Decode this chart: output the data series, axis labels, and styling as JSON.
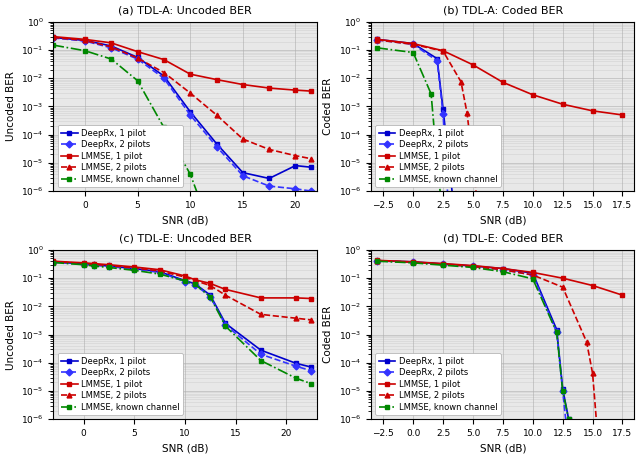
{
  "fig_width": 6.4,
  "fig_height": 4.59,
  "dpi": 100,
  "background_color": "#ffffff",
  "tdla_uncoded": {
    "xlabel": "SNR (dB)",
    "ylabel": "Uncoded BER",
    "title": "(a) TDL-A: Uncoded BER",
    "xlim": [
      -3,
      22
    ],
    "ylim_log": [
      -6,
      0
    ],
    "xticks": [
      0,
      5,
      10,
      15,
      20
    ],
    "series": [
      {
        "label": "DeepRx, 1 pilot",
        "color": "#0000cc",
        "linestyle": "-",
        "marker": "s",
        "markersize": 3.5,
        "linewidth": 1.2,
        "x": [
          -3,
          0,
          2.5,
          5,
          7.5,
          10,
          12.5,
          15,
          17.5,
          20,
          21.5
        ],
        "y": [
          0.28,
          0.22,
          0.14,
          0.055,
          0.012,
          0.00065,
          4.8e-05,
          4.5e-06,
          2.8e-06,
          8e-06,
          7e-06
        ]
      },
      {
        "label": "DeepRx, 2 pilots",
        "color": "#3333ff",
        "linestyle": "--",
        "marker": "D",
        "markersize": 3.5,
        "linewidth": 1.2,
        "x": [
          -3,
          0,
          2.5,
          5,
          7.5,
          10,
          12.5,
          15,
          17.5,
          20,
          21.5
        ],
        "y": [
          0.27,
          0.21,
          0.12,
          0.048,
          0.01,
          0.0005,
          3.8e-05,
          3.5e-06,
          1.5e-06,
          1.2e-06,
          1e-06
        ]
      },
      {
        "label": "LMMSE, 1 pilot",
        "color": "#cc0000",
        "linestyle": "-",
        "marker": "s",
        "markersize": 3.5,
        "linewidth": 1.2,
        "x": [
          -3,
          0,
          2.5,
          5,
          7.5,
          10,
          12.5,
          15,
          17.5,
          20,
          21.5
        ],
        "y": [
          0.3,
          0.24,
          0.18,
          0.088,
          0.046,
          0.014,
          0.009,
          0.006,
          0.0045,
          0.0038,
          0.0035
        ]
      },
      {
        "label": "LMMSE, 2 pilots",
        "color": "#cc0000",
        "linestyle": "--",
        "marker": "^",
        "markersize": 3.5,
        "linewidth": 1.2,
        "x": [
          -3,
          0,
          2.5,
          5,
          7.5,
          10,
          12.5,
          15,
          17.5,
          20,
          21.5
        ],
        "y": [
          0.28,
          0.22,
          0.13,
          0.052,
          0.016,
          0.003,
          0.0005,
          7e-05,
          3e-05,
          1.8e-05,
          1.4e-05
        ]
      },
      {
        "label": "LMMSE, known channel",
        "color": "#008800",
        "linestyle": "-.",
        "marker": "s",
        "markersize": 3.5,
        "linewidth": 1.2,
        "x": [
          -3,
          0,
          2.5,
          5,
          7.5,
          10,
          11,
          12,
          13,
          14
        ],
        "y": [
          0.15,
          0.095,
          0.048,
          0.0082,
          0.00018,
          4e-06,
          4e-07,
          4e-08,
          4e-09,
          4e-10
        ]
      }
    ]
  },
  "tdla_coded": {
    "xlabel": "SNR (dB)",
    "ylabel": "Coded BER",
    "title": "(b) TDL-A: Coded BER",
    "xlim": [
      -3.5,
      18.5
    ],
    "ylim_log": [
      -6,
      0
    ],
    "xticks": [
      -2.5,
      0.0,
      2.5,
      5.0,
      7.5,
      10.0,
      12.5,
      15.0,
      17.5
    ],
    "series": [
      {
        "label": "DeepRx, 1 pilot",
        "color": "#0000cc",
        "linestyle": "-",
        "marker": "s",
        "markersize": 3.5,
        "linewidth": 1.2,
        "x": [
          -3,
          0,
          2.0,
          2.5,
          3.0,
          3.5
        ],
        "y": [
          0.24,
          0.17,
          0.05,
          0.0008,
          1e-05,
          1e-07
        ]
      },
      {
        "label": "DeepRx, 2 pilots",
        "color": "#3333ff",
        "linestyle": "--",
        "marker": "D",
        "markersize": 3.5,
        "linewidth": 1.2,
        "x": [
          -3,
          0,
          2.0,
          2.5,
          3.0
        ],
        "y": [
          0.23,
          0.16,
          0.042,
          0.00055,
          1e-07
        ]
      },
      {
        "label": "LMMSE, 1 pilot",
        "color": "#cc0000",
        "linestyle": "-",
        "marker": "s",
        "markersize": 3.5,
        "linewidth": 1.2,
        "x": [
          -3,
          0,
          2.5,
          5.0,
          7.5,
          10.0,
          12.5,
          15.0,
          17.5
        ],
        "y": [
          0.24,
          0.17,
          0.095,
          0.03,
          0.0072,
          0.0026,
          0.0012,
          0.0007,
          0.0005
        ]
      },
      {
        "label": "LMMSE, 2 pilots",
        "color": "#cc0000",
        "linestyle": "--",
        "marker": "^",
        "markersize": 3.5,
        "linewidth": 1.2,
        "x": [
          -3,
          0,
          2.5,
          4.0,
          4.5,
          5.0,
          5.5
        ],
        "y": [
          0.23,
          0.16,
          0.092,
          0.0075,
          0.0006,
          1e-05,
          1e-07
        ]
      },
      {
        "label": "LMMSE, known channel",
        "color": "#008800",
        "linestyle": "-.",
        "marker": "s",
        "markersize": 3.5,
        "linewidth": 1.2,
        "x": [
          -3,
          0,
          1.5,
          2.0,
          2.5
        ],
        "y": [
          0.12,
          0.082,
          0.0028,
          1e-05,
          1e-07
        ]
      }
    ]
  },
  "tdle_uncoded": {
    "xlabel": "SNR (dB)",
    "ylabel": "Uncoded BER",
    "title": "(c) TDL-E: Uncoded BER",
    "xlim": [
      -3,
      23
    ],
    "ylim_log": [
      -6,
      0
    ],
    "xticks": [
      0,
      5,
      10,
      15,
      20
    ],
    "series": [
      {
        "label": "DeepRx, 1 pilot",
        "color": "#0000cc",
        "linestyle": "-",
        "marker": "s",
        "markersize": 3.5,
        "linewidth": 1.2,
        "x": [
          -3,
          0,
          1,
          2.5,
          5,
          7.5,
          10,
          11,
          12.5,
          14,
          17.5,
          21,
          22.5
        ],
        "y": [
          0.38,
          0.32,
          0.3,
          0.27,
          0.22,
          0.17,
          0.082,
          0.063,
          0.025,
          0.0025,
          0.00028,
          9.5e-05,
          7e-05
        ]
      },
      {
        "label": "DeepRx, 2 pilots",
        "color": "#3333ff",
        "linestyle": "--",
        "marker": "D",
        "markersize": 3.5,
        "linewidth": 1.2,
        "x": [
          -3,
          0,
          1,
          2.5,
          5,
          7.5,
          10,
          11,
          12.5,
          14,
          17.5,
          21,
          22.5
        ],
        "y": [
          0.37,
          0.31,
          0.29,
          0.26,
          0.21,
          0.16,
          0.076,
          0.059,
          0.022,
          0.0022,
          0.0002,
          7.5e-05,
          5.2e-05
        ]
      },
      {
        "label": "LMMSE, 1 pilot",
        "color": "#cc0000",
        "linestyle": "-",
        "marker": "s",
        "markersize": 3.5,
        "linewidth": 1.2,
        "x": [
          -3,
          0,
          1,
          2.5,
          5,
          7.5,
          10,
          11,
          12.5,
          14,
          17.5,
          21,
          22.5
        ],
        "y": [
          0.4,
          0.35,
          0.33,
          0.3,
          0.25,
          0.2,
          0.12,
          0.088,
          0.065,
          0.04,
          0.02,
          0.02,
          0.019
        ]
      },
      {
        "label": "LMMSE, 2 pilots",
        "color": "#cc0000",
        "linestyle": "--",
        "marker": "^",
        "markersize": 3.5,
        "linewidth": 1.2,
        "x": [
          -3,
          0,
          1,
          2.5,
          5,
          7.5,
          10,
          11,
          12.5,
          14,
          17.5,
          21,
          22.5
        ],
        "y": [
          0.39,
          0.33,
          0.31,
          0.28,
          0.23,
          0.18,
          0.11,
          0.082,
          0.055,
          0.025,
          0.0052,
          0.0038,
          0.0033
        ]
      },
      {
        "label": "LMMSE, known channel",
        "color": "#008800",
        "linestyle": "-.",
        "marker": "s",
        "markersize": 3.5,
        "linewidth": 1.2,
        "x": [
          -3,
          0,
          1,
          2.5,
          5,
          7.5,
          10,
          11,
          12.5,
          14,
          17.5,
          21,
          22.5
        ],
        "y": [
          0.36,
          0.3,
          0.27,
          0.24,
          0.19,
          0.14,
          0.08,
          0.06,
          0.022,
          0.002,
          0.00012,
          2.8e-05,
          1.8e-05
        ]
      }
    ]
  },
  "tdle_coded": {
    "xlabel": "SNR (dB)",
    "ylabel": "Coded BER",
    "title": "(d) TDL-E: Coded BER",
    "xlim": [
      -3.5,
      18.5
    ],
    "ylim_log": [
      -6,
      0
    ],
    "xticks": [
      -2.5,
      0.0,
      2.5,
      5.0,
      7.5,
      10.0,
      12.5,
      15.0,
      17.5
    ],
    "series": [
      {
        "label": "DeepRx, 1 pilot",
        "color": "#0000cc",
        "linestyle": "-",
        "marker": "s",
        "markersize": 3.5,
        "linewidth": 1.2,
        "x": [
          -3,
          0,
          2.5,
          5,
          7.5,
          10,
          12.0,
          12.5,
          13.0,
          13.5
        ],
        "y": [
          0.42,
          0.38,
          0.32,
          0.27,
          0.22,
          0.15,
          0.0015,
          1.2e-05,
          1e-06,
          1e-07
        ]
      },
      {
        "label": "DeepRx, 2 pilots",
        "color": "#3333ff",
        "linestyle": "--",
        "marker": "D",
        "markersize": 3.5,
        "linewidth": 1.2,
        "x": [
          -3,
          0,
          2.5,
          5,
          7.5,
          10,
          12.0,
          12.5,
          13.0
        ],
        "y": [
          0.41,
          0.37,
          0.31,
          0.26,
          0.2,
          0.13,
          0.0012,
          1e-05,
          1e-07
        ]
      },
      {
        "label": "LMMSE, 1 pilot",
        "color": "#cc0000",
        "linestyle": "-",
        "marker": "s",
        "markersize": 3.5,
        "linewidth": 1.2,
        "x": [
          -3,
          0,
          2.5,
          5,
          7.5,
          10,
          12.5,
          15,
          17.5
        ],
        "y": [
          0.43,
          0.38,
          0.33,
          0.28,
          0.22,
          0.16,
          0.1,
          0.055,
          0.025
        ]
      },
      {
        "label": "LMMSE, 2 pilots",
        "color": "#cc0000",
        "linestyle": "--",
        "marker": "^",
        "markersize": 3.5,
        "linewidth": 1.2,
        "x": [
          -3,
          0,
          2.5,
          5,
          7.5,
          10,
          12.5,
          14.5,
          15.0,
          15.5
        ],
        "y": [
          0.42,
          0.37,
          0.31,
          0.26,
          0.2,
          0.13,
          0.048,
          0.00055,
          4.2e-05,
          1e-07
        ]
      },
      {
        "label": "LMMSE, known channel",
        "color": "#008800",
        "linestyle": "-.",
        "marker": "s",
        "markersize": 3.5,
        "linewidth": 1.2,
        "x": [
          -3,
          0,
          2.5,
          5,
          7.5,
          10,
          12.0,
          12.5,
          13.0,
          13.5
        ],
        "y": [
          0.4,
          0.35,
          0.29,
          0.24,
          0.17,
          0.095,
          0.0012,
          1e-05,
          1e-06,
          1e-07
        ]
      }
    ]
  },
  "legend_fontsize": 6.0,
  "axis_fontsize": 7.5,
  "tick_fontsize": 6.5,
  "title_fontsize": 8,
  "grid_color": "#b0b0b0",
  "grid_alpha": 0.7
}
